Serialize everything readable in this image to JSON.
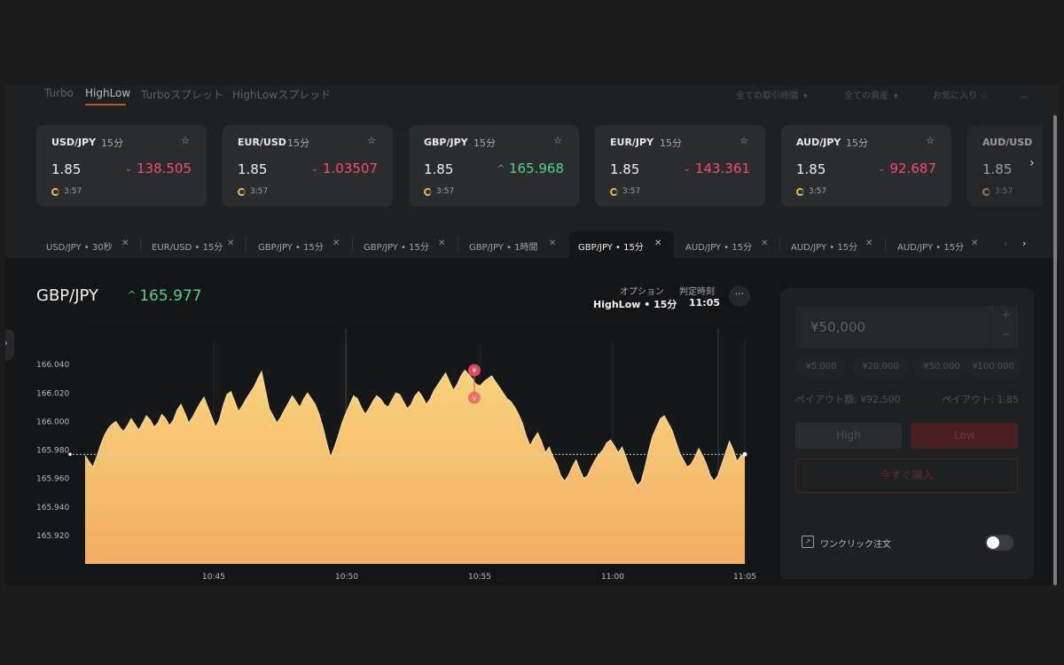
{
  "topnav": {
    "tabs": [
      "Turbo",
      "HighLow",
      "Turboスプレット",
      "HighLowスプレッド"
    ],
    "active_tab": "HighLow",
    "filters": [
      "全ての取引時間",
      "全ての資産",
      "お気に入り ☆"
    ],
    "collapse_icon": "chevron-up-icon"
  },
  "cards": [
    {
      "pair": "USD/JPY",
      "duration": "15分",
      "payout": "1.85",
      "price": "138.505",
      "direction": "down",
      "timer": "3:57"
    },
    {
      "pair": "EUR/USD",
      "duration": "15分",
      "payout": "1.85",
      "price": "1.03507",
      "direction": "down",
      "timer": "3:57"
    },
    {
      "pair": "GBP/JPY",
      "duration": "15分",
      "payout": "1.85",
      "price": "165.968",
      "direction": "up",
      "timer": "3:57"
    },
    {
      "pair": "EUR/JPY",
      "duration": "15分",
      "payout": "1.85",
      "price": "143.361",
      "direction": "down",
      "timer": "3:57"
    },
    {
      "pair": "AUD/JPY",
      "duration": "15分",
      "payout": "1.85",
      "price": "92.687",
      "direction": "down",
      "timer": "3:57"
    },
    {
      "pair": "AUD/USD",
      "duration": "",
      "payout": "1.85",
      "price": "",
      "direction": "",
      "timer": "3:57"
    }
  ],
  "open_tabs": [
    {
      "label": "USD/JPY • 30秒",
      "active": false
    },
    {
      "label": "EUR/USD • 15分",
      "active": false
    },
    {
      "label": "GBP/JPY • 15分",
      "active": false
    },
    {
      "label": "GBP/JPY • 15分",
      "active": false
    },
    {
      "label": "GBP/JPY • 1時間",
      "active": false
    },
    {
      "label": "GBP/JPY • 15分",
      "active": true
    },
    {
      "label": "AUD/JPY • 15分",
      "active": false
    },
    {
      "label": "AUD/JPY • 15分",
      "active": false
    },
    {
      "label": "AUD/JPY • 15分",
      "active": false
    }
  ],
  "main": {
    "symbol": "GBP/JPY",
    "price": "165.977",
    "price_direction": "up",
    "option_label": "オプション",
    "option_value": "HighLow • 15分",
    "judgement_label": "判定時刻",
    "judgement_value": "11:05",
    "more_label": "···"
  },
  "chart_data": {
    "type": "area",
    "y_ticks": [
      "166.040",
      "166.020",
      "166.000",
      "165.980",
      "165.960",
      "165.940",
      "165.920"
    ],
    "x_ticks": [
      "10:45",
      "10:50",
      "10:55",
      "11:00",
      "11:05"
    ],
    "ylim": [
      165.9,
      166.065
    ],
    "current_price": 165.977,
    "entry_marker": {
      "label": "¥",
      "time_index": 0.59,
      "value": 166.036
    },
    "colors": {
      "fill_top": "#fad27e",
      "fill_bottom": "#f0ad63",
      "line": "#fde3a0",
      "marker": "#e0475a"
    },
    "series": [
      {
        "values": [
          165.976,
          165.972,
          165.968,
          165.975,
          165.983,
          165.99,
          165.995,
          165.998,
          166.0,
          165.996,
          165.993,
          165.997,
          166.002,
          165.998,
          165.994,
          165.999,
          166.004,
          166.001,
          165.996,
          165.999,
          166.005,
          166.002,
          165.997,
          166.001,
          166.008,
          166.012,
          166.006,
          165.999,
          166.003,
          166.008,
          166.013,
          166.017,
          166.01,
          166.003,
          165.996,
          166.001,
          166.011,
          166.019,
          166.021,
          166.014,
          166.007,
          166.011,
          166.016,
          166.02,
          166.024,
          166.03,
          166.035,
          166.022,
          166.009,
          166.004,
          165.999,
          166.003,
          166.008,
          166.013,
          166.018,
          166.014,
          166.01,
          166.016,
          166.02,
          166.016,
          166.012,
          166.005,
          165.996,
          165.985,
          165.975,
          165.982,
          165.99,
          165.999,
          166.006,
          166.012,
          166.018,
          166.016,
          166.01,
          166.005,
          166.009,
          166.014,
          166.018,
          166.016,
          166.012,
          166.01,
          166.015,
          166.02,
          166.019,
          166.014,
          166.009,
          166.012,
          166.018,
          166.021,
          166.017,
          166.012,
          166.016,
          166.022,
          166.026,
          166.03,
          166.034,
          166.028,
          166.022,
          166.026,
          166.032,
          166.036,
          166.033,
          166.03,
          166.026,
          166.025,
          166.028,
          166.03,
          166.032,
          166.028,
          166.024,
          166.02,
          166.016,
          166.014,
          166.01,
          166.005,
          165.999,
          165.99,
          165.983,
          165.988,
          165.992,
          165.986,
          165.978,
          165.982,
          165.975,
          165.97,
          165.962,
          165.958,
          165.962,
          165.968,
          165.973,
          165.966,
          165.96,
          165.962,
          165.968,
          165.973,
          165.977,
          165.98,
          165.985,
          165.987,
          165.983,
          165.978,
          165.982,
          165.975,
          165.967,
          165.96,
          165.955,
          165.958,
          165.968,
          165.98,
          165.99,
          165.996,
          166.002,
          166.004,
          165.999,
          165.994,
          165.986,
          165.978,
          165.973,
          165.968,
          165.97,
          165.975,
          165.981,
          165.976,
          165.97,
          165.962,
          165.958,
          165.962,
          165.97,
          165.978,
          165.986,
          165.98,
          165.972,
          165.976,
          165.977
        ]
      }
    ]
  },
  "panel": {
    "amount": "¥50,000",
    "plus": "+",
    "minus": "−",
    "chips": [
      "¥5,000",
      "¥20,000",
      "¥50,000",
      "¥100,000"
    ],
    "payout_label": "ペイアウト額: ¥92,500",
    "payout_rate": "ペイアウト: 1.85",
    "high_label": "High",
    "low_label": "Low",
    "buy_label": "今すぐ購入",
    "oneclick_label": "ワンクリック注文",
    "oneclick_enabled": false
  }
}
